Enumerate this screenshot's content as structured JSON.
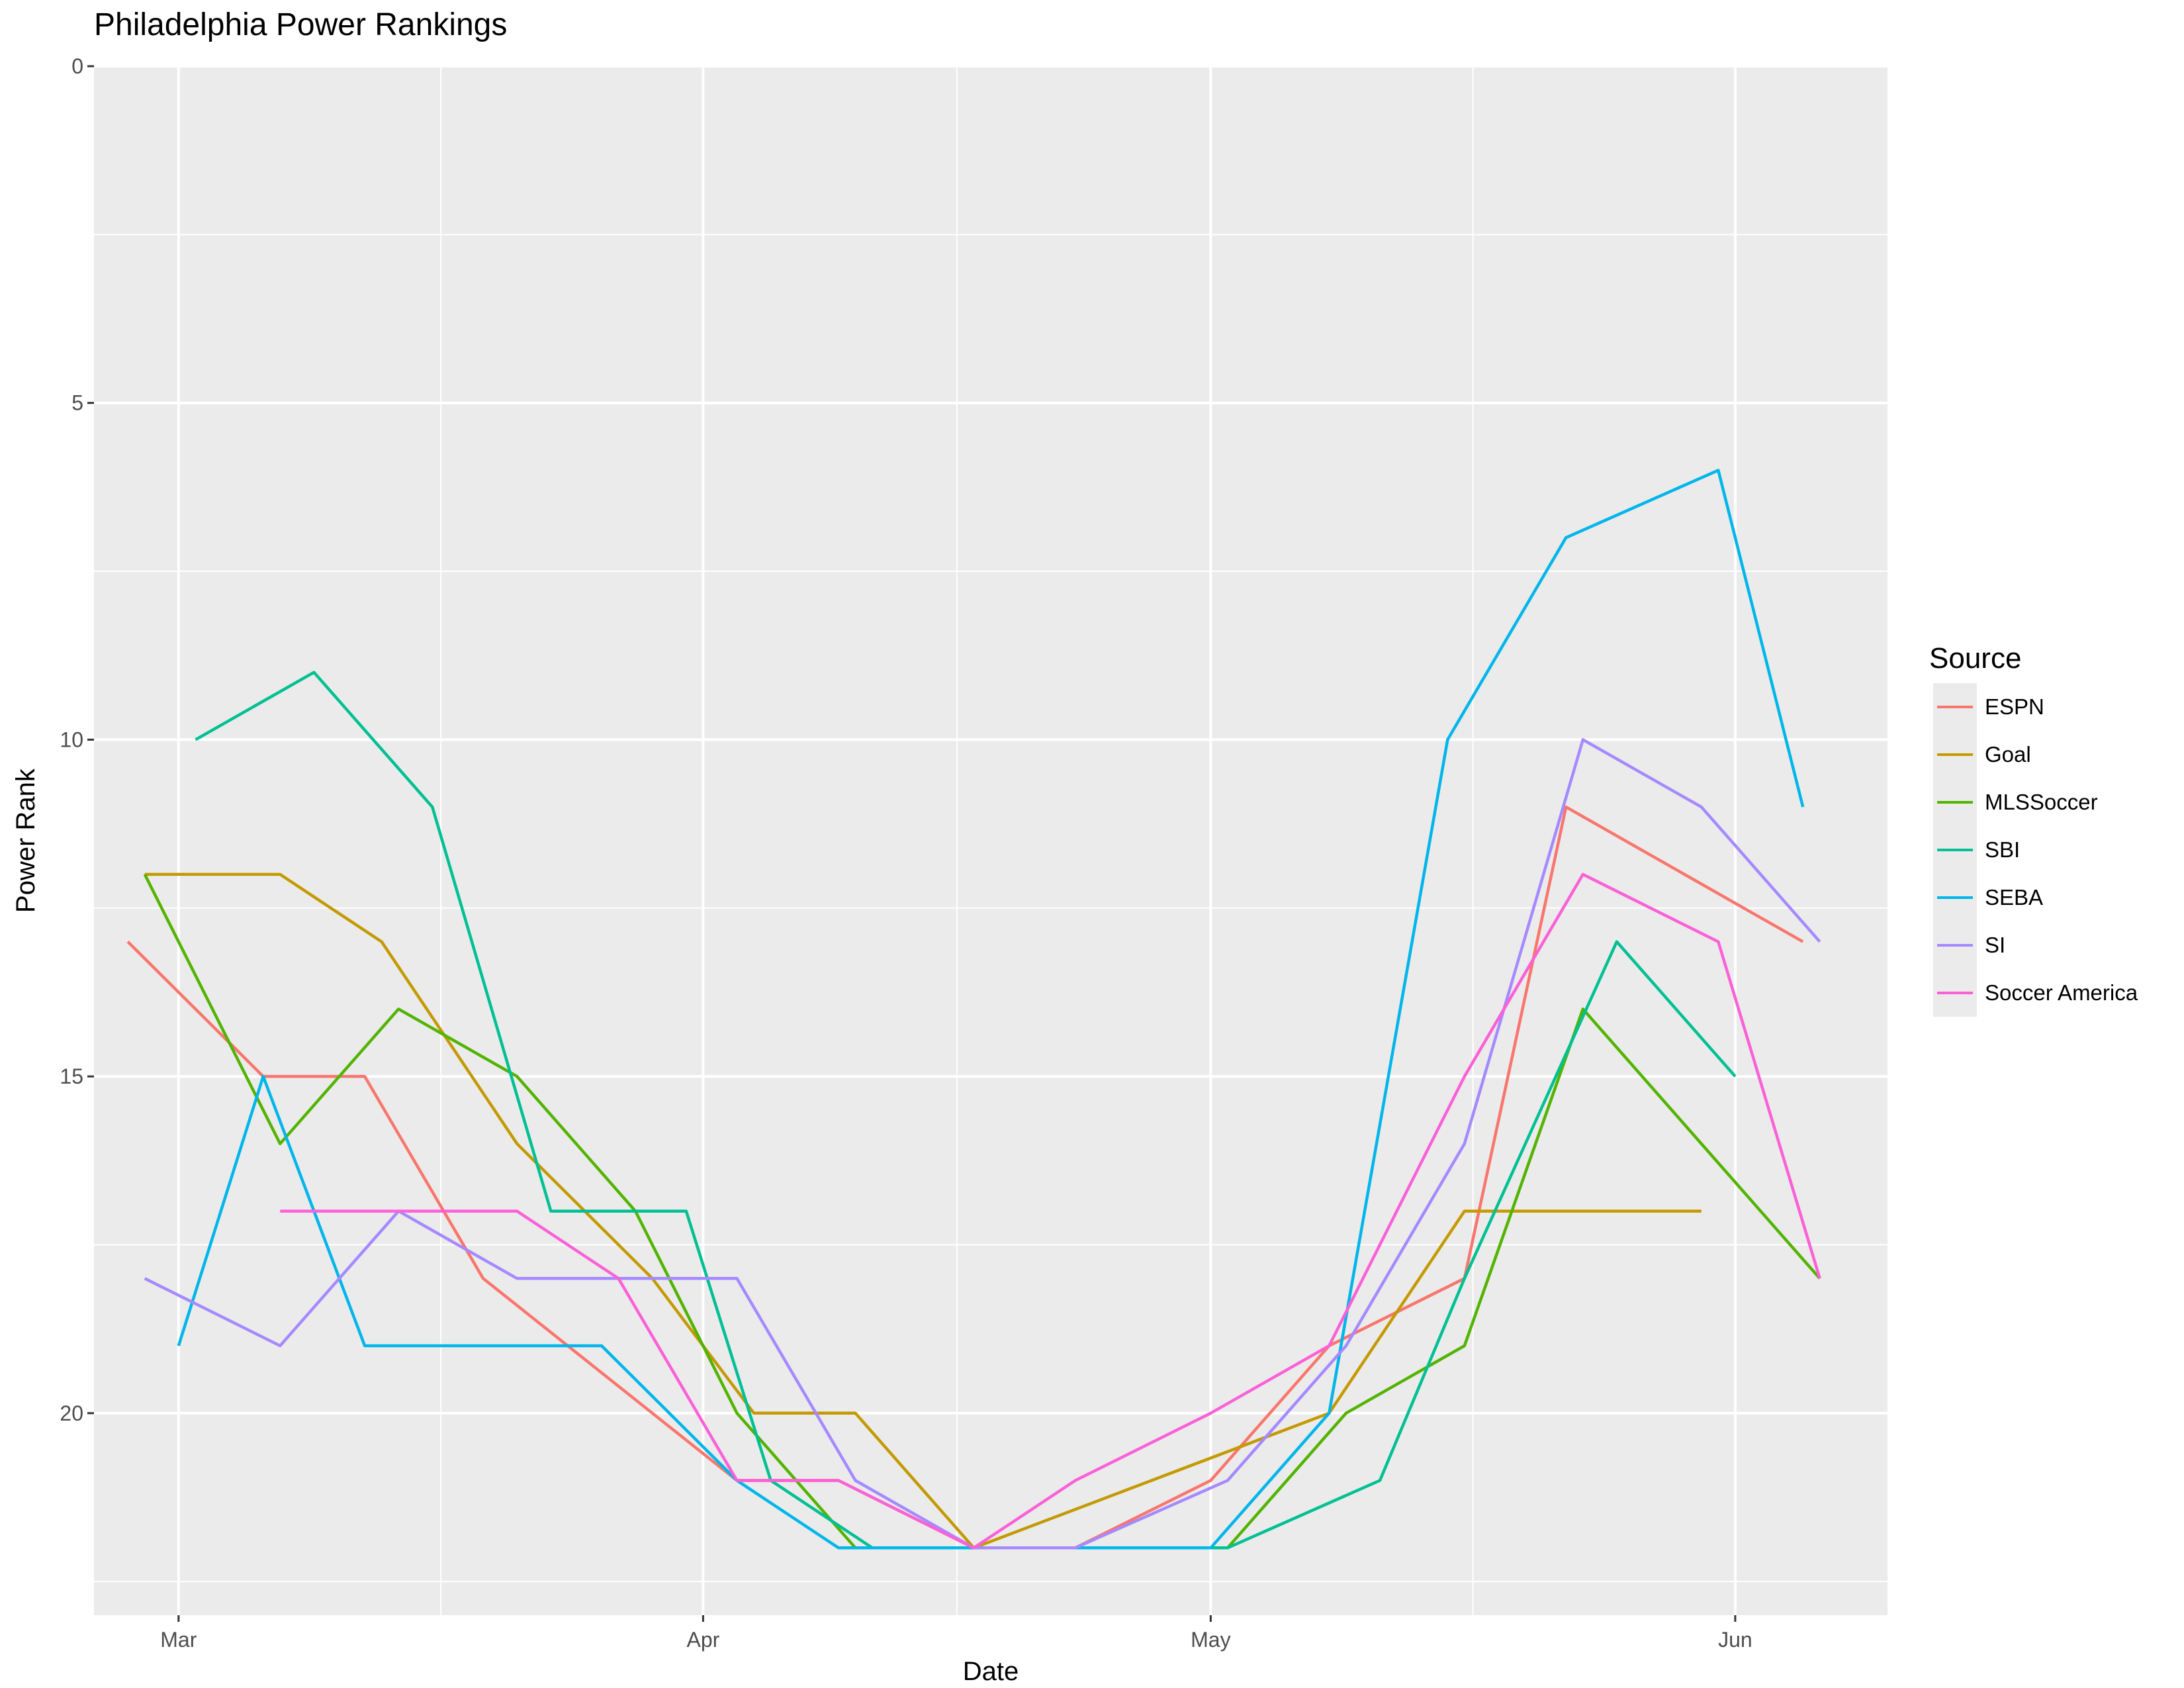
{
  "chart_data": {
    "type": "line",
    "title": "Philadelphia Power Rankings",
    "xlabel": "Date",
    "ylabel": "Power Rank",
    "x_type": "date",
    "xlim": [
      "2016-02-25",
      "2016-06-10"
    ],
    "ylim": [
      23,
      0
    ],
    "y_reversed": true,
    "x_tick_labels": [
      {
        "date": "2016-03-01",
        "label": "Mar"
      },
      {
        "date": "2016-04-01",
        "label": "Apr"
      },
      {
        "date": "2016-05-01",
        "label": "May"
      },
      {
        "date": "2016-06-01",
        "label": "Jun"
      }
    ],
    "y_ticks": [
      0,
      5,
      10,
      15,
      20
    ],
    "grid": true,
    "legend": {
      "title": "Source",
      "position": "right"
    },
    "series": [
      {
        "name": "ESPN",
        "color": "#F8766D",
        "x": [
          "2016-02-27",
          "2016-03-06",
          "2016-03-12",
          "2016-03-19",
          "2016-04-03",
          "2016-04-09",
          "2016-04-17",
          "2016-04-23",
          "2016-05-01",
          "2016-05-08",
          "2016-05-16",
          "2016-05-22",
          "2016-06-05"
        ],
        "y": [
          13,
          15,
          15,
          18,
          21,
          21,
          22,
          22,
          21,
          19,
          18,
          11,
          13
        ]
      },
      {
        "name": "Goal",
        "color": "#C49A00",
        "x": [
          "2016-02-28",
          "2016-03-07",
          "2016-03-13",
          "2016-03-21",
          "2016-03-29",
          "2016-04-04",
          "2016-04-10",
          "2016-04-17",
          "2016-05-08",
          "2016-05-16",
          "2016-05-30"
        ],
        "y": [
          12,
          12,
          13,
          16,
          18,
          20,
          20,
          22,
          20,
          17,
          17
        ]
      },
      {
        "name": "MLSSoccer",
        "color": "#53B400",
        "x": [
          "2016-02-28",
          "2016-03-07",
          "2016-03-14",
          "2016-03-21",
          "2016-03-28",
          "2016-04-03",
          "2016-04-10",
          "2016-05-02",
          "2016-05-09",
          "2016-05-16",
          "2016-05-23",
          "2016-06-06"
        ],
        "y": [
          12,
          16,
          14,
          15,
          17,
          20,
          22,
          22,
          20,
          19,
          14,
          18
        ]
      },
      {
        "name": "SBI",
        "color": "#00C094",
        "x": [
          "2016-03-02",
          "2016-03-09",
          "2016-03-16",
          "2016-03-23",
          "2016-03-31",
          "2016-04-05",
          "2016-04-11",
          "2016-04-18",
          "2016-05-02",
          "2016-05-11",
          "2016-05-16",
          "2016-05-25",
          "2016-06-01"
        ],
        "y": [
          10,
          9,
          11,
          17,
          17,
          21,
          22,
          22,
          22,
          21,
          18,
          13,
          15
        ]
      },
      {
        "name": "SEBA",
        "color": "#00B6EB",
        "x": [
          "2016-03-01",
          "2016-03-06",
          "2016-03-12",
          "2016-03-26",
          "2016-04-03",
          "2016-04-09",
          "2016-04-17",
          "2016-05-01",
          "2016-05-08",
          "2016-05-15",
          "2016-05-22",
          "2016-05-31",
          "2016-06-05"
        ],
        "y": [
          19,
          15,
          19,
          19,
          21,
          22,
          22,
          22,
          20,
          10,
          7,
          6,
          11
        ]
      },
      {
        "name": "SI",
        "color": "#A58AFF",
        "x": [
          "2016-02-28",
          "2016-03-07",
          "2016-03-14",
          "2016-03-21",
          "2016-04-03",
          "2016-04-10",
          "2016-04-17",
          "2016-04-23",
          "2016-05-02",
          "2016-05-09",
          "2016-05-16",
          "2016-05-23",
          "2016-05-30",
          "2016-06-06"
        ],
        "y": [
          18,
          19,
          17,
          18,
          18,
          21,
          22,
          22,
          21,
          19,
          16,
          10,
          11,
          13
        ]
      },
      {
        "name": "Soccer America",
        "color": "#FB61D7",
        "x": [
          "2016-03-07",
          "2016-03-21",
          "2016-03-27",
          "2016-04-03",
          "2016-04-09",
          "2016-04-17",
          "2016-04-23",
          "2016-05-01",
          "2016-05-08",
          "2016-05-16",
          "2016-05-23",
          "2016-05-31",
          "2016-06-06"
        ],
        "y": [
          17,
          17,
          18,
          21,
          21,
          22,
          21,
          20,
          19,
          15,
          12,
          13,
          18
        ]
      }
    ]
  }
}
